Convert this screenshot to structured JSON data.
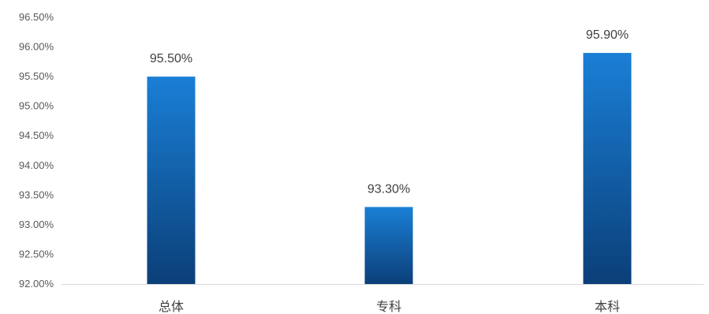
{
  "chart_data": {
    "type": "bar",
    "title": "",
    "xlabel": "",
    "ylabel": "",
    "categories": [
      "总体",
      "专科",
      "本科"
    ],
    "values": [
      95.5,
      93.3,
      95.9
    ],
    "data_labels": [
      "95.50%",
      "93.30%",
      "95.90%"
    ],
    "ylim": [
      92.0,
      96.5
    ],
    "y_ticks": [
      92.0,
      92.5,
      93.0,
      93.5,
      94.0,
      94.5,
      95.0,
      95.5,
      96.0,
      96.5
    ],
    "y_tick_labels": [
      "92.00%",
      "92.50%",
      "93.00%",
      "93.50%",
      "94.00%",
      "94.50%",
      "95.00%",
      "95.50%",
      "96.00%",
      "96.50%"
    ],
    "grid": false,
    "legend": "none",
    "colors": {
      "bar_top": "#1a7fd6",
      "bar_bottom": "#0b3f78",
      "axis": "#d9d9d9"
    }
  }
}
